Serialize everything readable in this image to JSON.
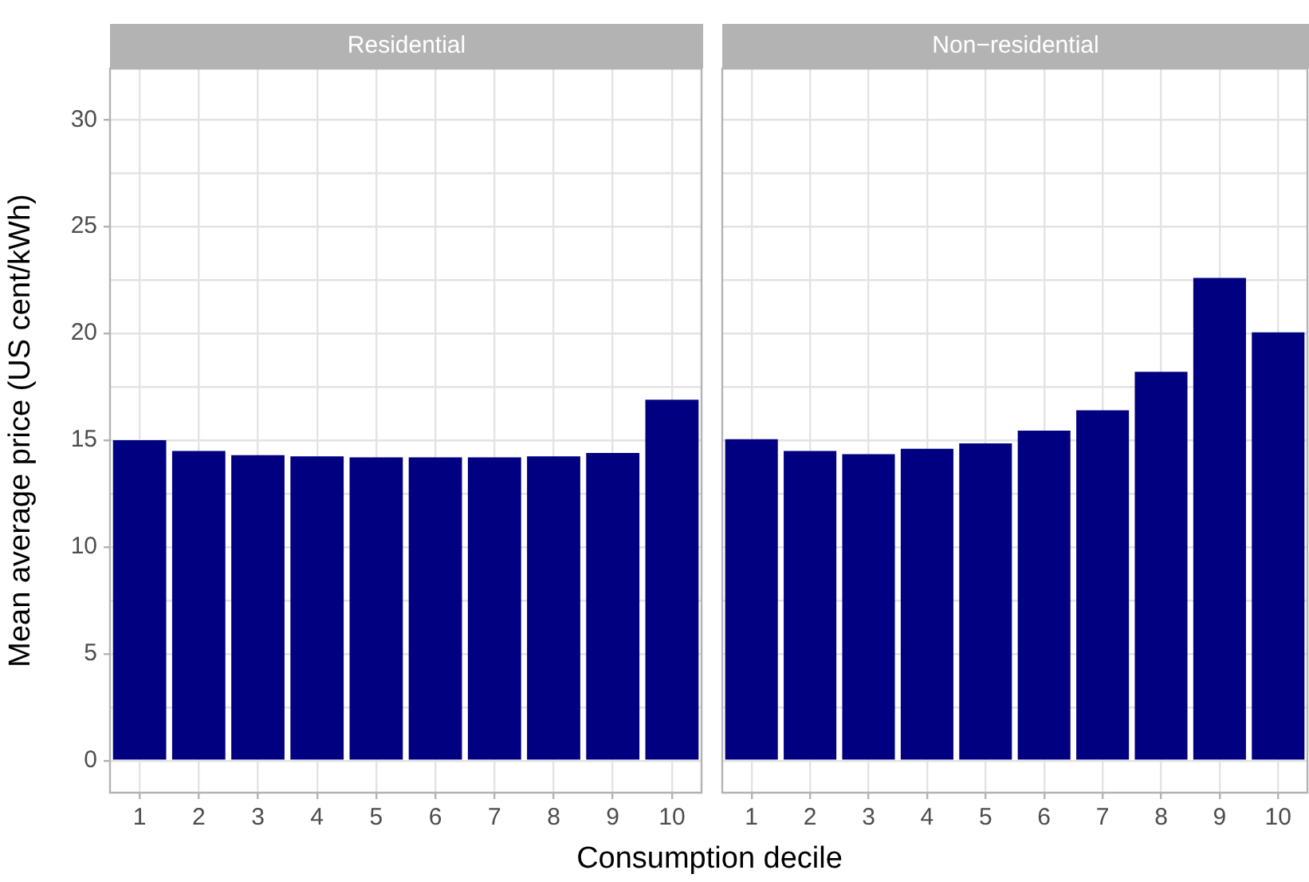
{
  "chart_data": [
    {
      "type": "bar",
      "title": "Residential",
      "ylabel": "Mean average price (US cent/kWh)",
      "xlabel": "Consumption decile",
      "categories": [
        "1",
        "2",
        "3",
        "4",
        "5",
        "6",
        "7",
        "8",
        "9",
        "10"
      ],
      "series": [
        {
          "color": "#000080",
          "values": [
            15.0,
            14.5,
            14.3,
            14.25,
            14.2,
            14.2,
            14.2,
            14.25,
            14.4,
            16.9
          ]
        }
      ],
      "ylim": [
        -1.5,
        32.4
      ],
      "yticks": [
        0,
        {
          "value": 2.5,
          "label": null
        },
        5,
        {
          "value": 7.5,
          "label": null
        },
        10,
        {
          "value": 12.5,
          "label": null
        },
        15,
        {
          "value": 17.5,
          "label": null
        },
        20,
        {
          "value": 22.5,
          "label": null
        },
        25,
        {
          "value": 27.5,
          "label": null
        },
        30
      ],
      "grid": true,
      "legend": false
    },
    {
      "type": "bar",
      "title": "Non−residential",
      "categories": [
        "1",
        "2",
        "3",
        "4",
        "5",
        "6",
        "7",
        "8",
        "9",
        "10"
      ],
      "series": [
        {
          "color": "#000080",
          "values": [
            15.05,
            14.5,
            14.35,
            14.6,
            14.85,
            15.45,
            16.4,
            18.2,
            22.6,
            20.05
          ]
        }
      ],
      "ylim": [
        -1.5,
        32.4
      ],
      "yticks": [
        0,
        {
          "value": 2.5,
          "label": null
        },
        5,
        {
          "value": 7.5,
          "label": null
        },
        10,
        {
          "value": 12.5,
          "label": null
        },
        15,
        {
          "value": 17.5,
          "label": null
        },
        20,
        {
          "value": 22.5,
          "label": null
        },
        25,
        {
          "value": 27.5,
          "label": null
        },
        30
      ],
      "grid": true,
      "legend": false,
      "tick_labels": "x"
    }
  ]
}
